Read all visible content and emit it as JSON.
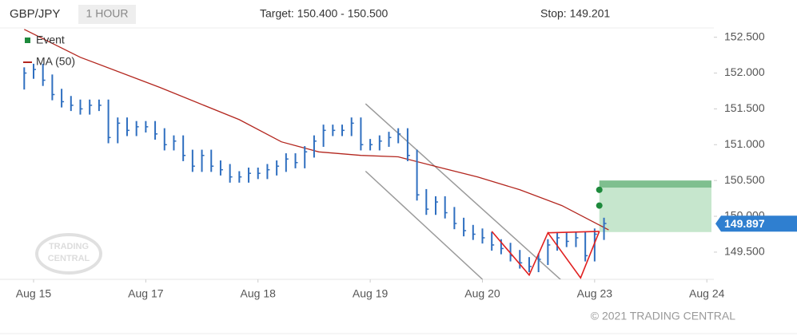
{
  "chart_data": {
    "type": "ohlc",
    "symbol": "GBP/JPY",
    "interval": "1 HOUR",
    "target_text": "Target: 150.400 - 150.500",
    "stop_text": "Stop: 149.201",
    "copyright": "© 2021 TRADING CENTRAL",
    "watermark": [
      "TRADING",
      "CENTRAL"
    ],
    "color": "#2f6fc0",
    "x": [
      -2,
      0,
      2,
      4,
      6,
      8,
      10,
      12,
      14,
      16,
      18,
      20,
      22,
      24,
      26,
      28,
      30,
      32,
      34,
      36,
      38,
      40,
      42,
      44,
      46,
      48,
      50,
      52,
      54,
      56,
      58,
      60,
      62,
      64,
      66,
      68,
      70,
      72,
      74,
      76,
      78,
      80,
      82,
      84,
      86,
      88,
      90,
      92,
      94,
      96,
      98,
      100,
      102,
      104,
      106,
      108,
      110,
      112,
      114,
      116,
      118,
      120,
      122
    ],
    "high": [
      152.08,
      152.13,
      152.13,
      151.98,
      151.78,
      151.68,
      151.63,
      151.63,
      151.63,
      151.63,
      151.38,
      151.38,
      151.33,
      151.33,
      151.33,
      151.23,
      151.13,
      151.13,
      150.93,
      150.93,
      150.93,
      150.78,
      150.73,
      150.63,
      150.68,
      150.68,
      150.73,
      150.78,
      150.88,
      150.88,
      150.98,
      151.13,
      151.28,
      151.28,
      151.28,
      151.38,
      151.38,
      151.08,
      151.13,
      151.18,
      151.23,
      151.23,
      150.93,
      150.38,
      150.28,
      150.28,
      150.13,
      149.98,
      149.88,
      149.83,
      149.78,
      149.68,
      149.63,
      149.53,
      149.43,
      149.48,
      149.68,
      149.78,
      149.78,
      149.78,
      149.78,
      149.83,
      149.98
    ],
    "low": [
      151.77,
      151.92,
      151.82,
      151.62,
      151.52,
      151.47,
      151.42,
      151.42,
      151.47,
      151.02,
      151.02,
      151.12,
      151.12,
      151.17,
      151.07,
      150.92,
      150.92,
      150.77,
      150.62,
      150.62,
      150.62,
      150.57,
      150.47,
      150.47,
      150.47,
      150.52,
      150.52,
      150.57,
      150.62,
      150.67,
      150.67,
      150.82,
      150.97,
      151.12,
      151.12,
      151.12,
      150.92,
      150.92,
      150.92,
      150.97,
      151.02,
      150.77,
      150.22,
      150.02,
      150.02,
      149.97,
      149.82,
      149.72,
      149.67,
      149.62,
      149.52,
      149.47,
      149.37,
      149.27,
      149.22,
      149.22,
      149.32,
      149.52,
      149.57,
      149.57,
      149.37,
      149.37,
      149.67
    ],
    "close": [
      152.0,
      152.05,
      151.9,
      151.7,
      151.6,
      151.55,
      151.5,
      151.55,
      151.55,
      151.1,
      151.3,
      151.2,
      151.25,
      151.25,
      151.15,
      151.0,
      151.05,
      150.85,
      150.7,
      150.85,
      150.7,
      150.65,
      150.55,
      150.55,
      150.6,
      150.6,
      150.65,
      150.7,
      150.8,
      150.75,
      150.9,
      151.05,
      151.2,
      151.2,
      151.2,
      151.3,
      151.0,
      151.0,
      151.05,
      151.1,
      151.15,
      150.85,
      150.3,
      150.1,
      150.2,
      150.05,
      149.9,
      149.8,
      149.75,
      149.7,
      149.6,
      149.55,
      149.45,
      149.35,
      149.3,
      149.4,
      149.6,
      149.7,
      149.65,
      149.7,
      149.45,
      149.75,
      149.9
    ],
    "ma": {
      "name": "MA (50)",
      "color": "#b3261e",
      "x": [
        -2,
        10,
        27,
        44,
        53,
        61,
        70,
        78,
        87,
        95,
        104,
        113,
        123
      ],
      "values": [
        152.61,
        152.22,
        151.8,
        151.35,
        151.04,
        150.9,
        150.85,
        150.83,
        150.68,
        150.55,
        150.37,
        150.15,
        149.81
      ]
    },
    "events": {
      "name": "Event",
      "color": "#1e8a3c",
      "x": [
        121,
        121
      ],
      "values": [
        150.37,
        150.15
      ]
    },
    "channel": [
      {
        "color": "#9a9a9a",
        "x": [
          71,
          113
        ],
        "values": [
          151.57,
          149.1
        ]
      },
      {
        "color": "#9a9a9a",
        "x": [
          71,
          96
        ],
        "values": [
          150.63,
          149.12
        ]
      }
    ],
    "pattern": {
      "color": "#e02020",
      "x": [
        98,
        106,
        110,
        117,
        121
      ],
      "values": [
        149.79,
        149.18,
        149.77,
        149.14,
        149.79
      ]
    },
    "neckline": {
      "color": "#e02020",
      "x": [
        110,
        121
      ],
      "values": [
        149.77,
        149.79
      ]
    },
    "target_zone": {
      "color": "#7fbf8f",
      "light_color": "#c6e6cd",
      "x_start": 121,
      "values": [
        150.4,
        150.5
      ],
      "zone_low": 149.78
    },
    "last_price": 149.897,
    "last_color": "#2f7fd0",
    "xlim": [
      -7.18,
      145.5
    ],
    "ylim": [
      149.12,
      152.63
    ],
    "xticks": [
      {
        "value": 0,
        "label": "Aug 15"
      },
      {
        "value": 24,
        "label": "Aug 17"
      },
      {
        "value": 48,
        "label": "Aug 18"
      },
      {
        "value": 72,
        "label": "Aug 19"
      },
      {
        "value": 96,
        "label": "Aug 20"
      },
      {
        "value": 120,
        "label": "Aug 23"
      },
      {
        "value": 144,
        "label": "Aug 24"
      }
    ],
    "yticks": [
      {
        "value": 149.5,
        "label": "149.500"
      },
      {
        "value": 150.0,
        "label": "150.000"
      },
      {
        "value": 150.5,
        "label": "150.500"
      },
      {
        "value": 151.0,
        "label": "151.000"
      },
      {
        "value": 151.5,
        "label": "151.500"
      },
      {
        "value": 152.0,
        "label": "152.000"
      },
      {
        "value": 152.5,
        "label": "152.500"
      }
    ]
  }
}
